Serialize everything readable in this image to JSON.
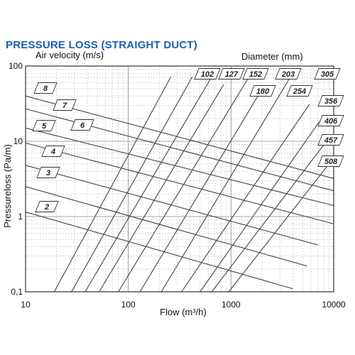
{
  "colors": {
    "title": "#1a5fb4",
    "line": "#444444",
    "grid": "#bdbdbd",
    "frame": "#333333"
  },
  "chart_data": {
    "type": "line",
    "scale": {
      "x": "log",
      "y": "log"
    },
    "title": "PRESSURE LOSS (STRAIGHT DUCT)",
    "xlabel": "Flow (m³/h)",
    "ylabel": "Pressureloss (Pa/m)",
    "xlim": [
      10,
      10000
    ],
    "ylim": [
      0.1,
      100
    ],
    "x_ticks": [
      "10",
      "100",
      "1000",
      "10000"
    ],
    "y_ticks": [
      "0,1",
      "1",
      "10",
      "100"
    ],
    "grid": true,
    "series_groups": {
      "air_velocity": {
        "label": "Air velocity (m/s)",
        "series": [
          {
            "name": "2",
            "points": [
              [
                10,
                1.15
              ],
              [
                4000,
                0.11
              ]
            ]
          },
          {
            "name": "3",
            "points": [
              [
                10,
                2.5
              ],
              [
                5500,
                0.22
              ]
            ]
          },
          {
            "name": "4",
            "points": [
              [
                10,
                4.8
              ],
              [
                7000,
                0.42
              ]
            ]
          },
          {
            "name": "5",
            "points": [
              [
                10,
                9.5
              ],
              [
                10000,
                0.8
              ]
            ]
          },
          {
            "name": "6",
            "points": [
              [
                10,
                15
              ],
              [
                10000,
                1.4
              ]
            ]
          },
          {
            "name": "7",
            "points": [
              [
                10,
                27
              ],
              [
                10000,
                2.2
              ]
            ]
          },
          {
            "name": "8",
            "points": [
              [
                10,
                40
              ],
              [
                10000,
                3.2
              ]
            ]
          }
        ]
      },
      "diameter": {
        "label": "Diameter (mm)",
        "series": [
          {
            "name": "102",
            "points": [
              [
                19,
                0.1
              ],
              [
                260,
                72
              ]
            ]
          },
          {
            "name": "127",
            "points": [
              [
                28,
                0.1
              ],
              [
                420,
                72
              ]
            ]
          },
          {
            "name": "152",
            "points": [
              [
                38,
                0.1
              ],
              [
                650,
                72
              ]
            ]
          },
          {
            "name": "180",
            "points": [
              [
                52,
                0.1
              ],
              [
                850,
                57
              ]
            ]
          },
          {
            "name": "203",
            "points": [
              [
                80,
                0.1
              ],
              [
                1500,
                72
              ]
            ]
          },
          {
            "name": "254",
            "points": [
              [
                130,
                0.1
              ],
              [
                2000,
                49
              ]
            ]
          },
          {
            "name": "305",
            "points": [
              [
                210,
                0.1
              ],
              [
                3800,
                72
              ]
            ]
          },
          {
            "name": "356",
            "points": [
              [
                330,
                0.1
              ],
              [
                5800,
                31
              ]
            ]
          },
          {
            "name": "406",
            "points": [
              [
                500,
                0.1
              ],
              [
                7200,
                18
              ]
            ]
          },
          {
            "name": "457",
            "points": [
              [
                650,
                0.1
              ],
              [
                8500,
                10
              ]
            ]
          },
          {
            "name": "508",
            "points": [
              [
                950,
                0.1
              ],
              [
                9800,
                5.8
              ]
            ]
          }
        ]
      }
    }
  }
}
